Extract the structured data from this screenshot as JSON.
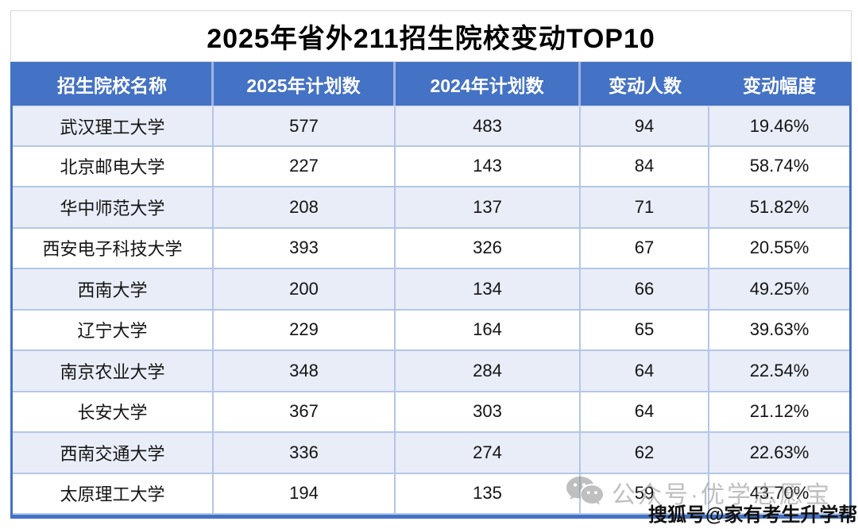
{
  "title": "2025年省外211招生院校变动TOP10",
  "table": {
    "columns": [
      "招生院校名称",
      "2025年计划数",
      "2024年计划数",
      "变动人数",
      "变动幅度"
    ],
    "rows": [
      {
        "school": "武汉理工大学",
        "plan_2025": "577",
        "plan_2024": "483",
        "change_count": "94",
        "change_rate": "19.46%"
      },
      {
        "school": "北京邮电大学",
        "plan_2025": "227",
        "plan_2024": "143",
        "change_count": "84",
        "change_rate": "58.74%"
      },
      {
        "school": "华中师范大学",
        "plan_2025": "208",
        "plan_2024": "137",
        "change_count": "71",
        "change_rate": "51.82%"
      },
      {
        "school": "西安电子科技大学",
        "plan_2025": "393",
        "plan_2024": "326",
        "change_count": "67",
        "change_rate": "20.55%"
      },
      {
        "school": "西南大学",
        "plan_2025": "200",
        "plan_2024": "134",
        "change_count": "66",
        "change_rate": "49.25%"
      },
      {
        "school": "辽宁大学",
        "plan_2025": "229",
        "plan_2024": "164",
        "change_count": "65",
        "change_rate": "39.63%"
      },
      {
        "school": "南京农业大学",
        "plan_2025": "348",
        "plan_2024": "284",
        "change_count": "64",
        "change_rate": "22.54%"
      },
      {
        "school": "长安大学",
        "plan_2025": "367",
        "plan_2024": "303",
        "change_count": "64",
        "change_rate": "21.12%"
      },
      {
        "school": "西南交通大学",
        "plan_2025": "336",
        "plan_2024": "274",
        "change_count": "62",
        "change_rate": "22.63%"
      },
      {
        "school": "太原理工大学",
        "plan_2025": "194",
        "plan_2024": "135",
        "change_count": "59",
        "change_rate": "43.70%"
      }
    ]
  },
  "watermarks": {
    "wechat_label": "公众号·优学志愿宝",
    "sohu_label": "搜狐号@家有考生升学帮"
  },
  "colors": {
    "header_bg": "#4472C4",
    "header_text": "#FFFFFF",
    "grid_line": "#B4C6E7",
    "alt_row_bg": "#E9EDF8",
    "outer_border": "#4472C4",
    "title_border": "#D9D9D9",
    "watermark_gray": "#8C8C8C"
  }
}
